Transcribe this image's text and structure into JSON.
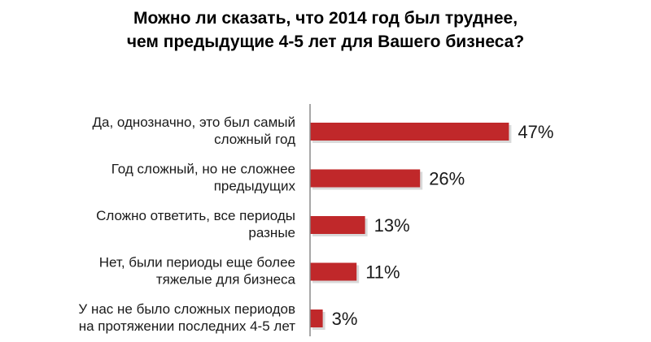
{
  "chart_data": {
    "type": "bar",
    "orientation": "horizontal",
    "title": [
      "Можно ли сказать, что 2014 год был труднее,",
      "чем предыдущие 4-5 лет для Вашего бизнеса?"
    ],
    "categories": [
      [
        "Да, однозначно, это был самый",
        "сложный год"
      ],
      [
        "Год сложный, но не сложнее",
        "предыдущих"
      ],
      [
        "Сложно ответить, все периоды",
        "разные"
      ],
      [
        "Нет, были периоды еще более",
        "тяжелые для бизнеса"
      ],
      [
        "У нас не было сложных периодов",
        "на протяжении последних 4-5 лет"
      ]
    ],
    "values": [
      47,
      26,
      13,
      11,
      3
    ],
    "value_labels": [
      "47%",
      "26%",
      "13%",
      "11%",
      "3%"
    ],
    "unit": "%",
    "xlim": [
      0,
      50
    ],
    "grid": false,
    "legend": "none",
    "bar_color": "#c0282a",
    "bar_shadow_color": "#d9d9d9",
    "axis_color": "#8c8c8c"
  }
}
